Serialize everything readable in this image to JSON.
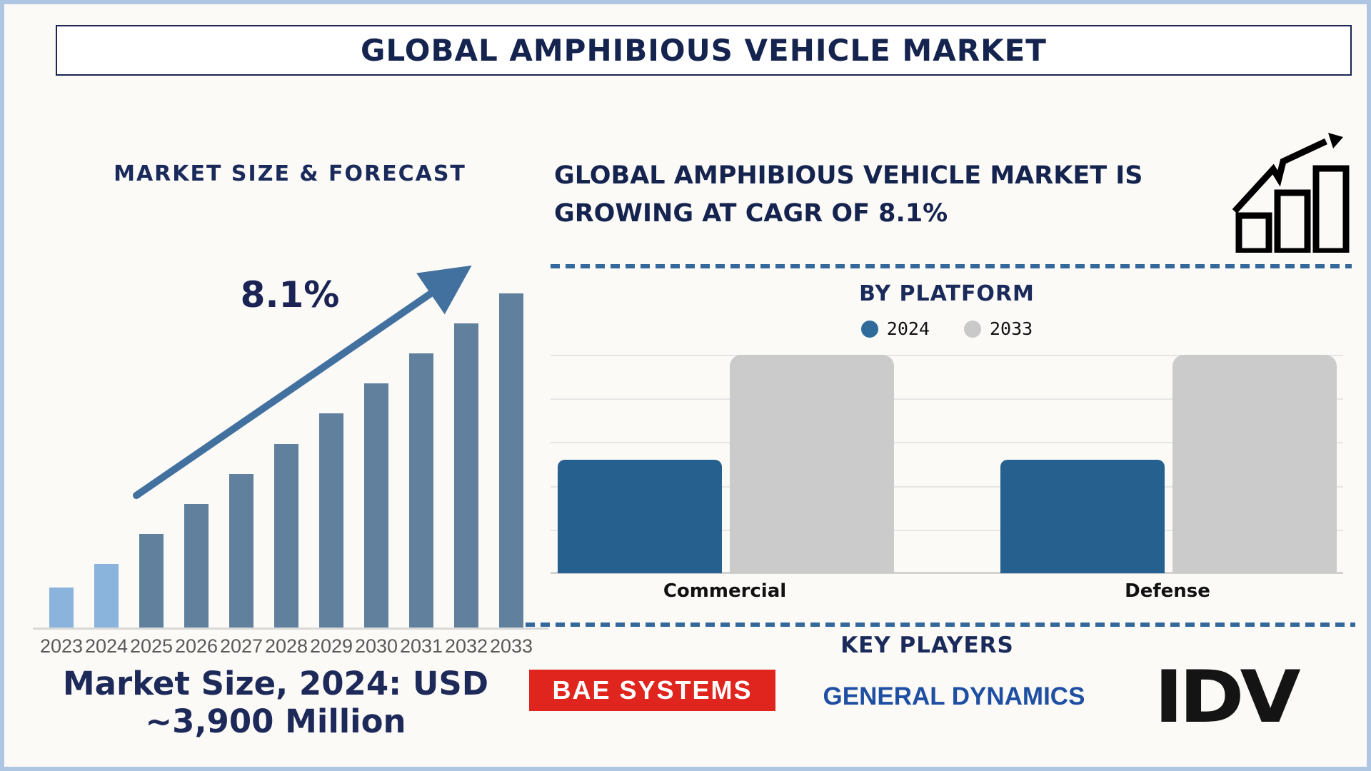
{
  "page": {
    "title": "GLOBAL AMPHIBIOUS VEHICLE MARKET"
  },
  "left_panel": {
    "heading": "MARKET SIZE & FORECAST",
    "cagr_annotation": "8.1%",
    "market_size_note_line1": "Market Size, 2024: USD",
    "market_size_note_line2": "~3,900 Million"
  },
  "right_panel": {
    "headline": "GLOBAL AMPHIBIOUS VEHICLE MARKET IS GROWING AT CAGR OF 8.1%",
    "growth_icon": "growth-chart-icon",
    "by_platform_heading": "BY PLATFORM",
    "key_players_heading": "KEY PLAYERS",
    "key_players": [
      "BAE SYSTEMS",
      "GENERAL DYNAMICS",
      "IDV"
    ]
  },
  "chart_data": [
    {
      "type": "bar",
      "title": "MARKET SIZE & FORECAST",
      "categories": [
        "2023",
        "2024",
        "2025",
        "2026",
        "2027",
        "2028",
        "2029",
        "2030",
        "2031",
        "2032",
        "2033"
      ],
      "values_rel_pct": [
        12,
        19,
        28,
        37,
        46,
        55,
        64,
        73,
        82,
        91,
        100
      ],
      "highlight_categories": [
        "2023",
        "2024"
      ],
      "annotation": "8.1%",
      "note": "Market Size, 2024: USD ~3,900 Million",
      "cagr": "8.1%",
      "market_size_2024_usd_million": 3900,
      "grid": false,
      "value_axis_labels": false
    },
    {
      "type": "bar",
      "title": "BY PLATFORM",
      "categories": [
        "Commercial",
        "Defense"
      ],
      "series": [
        {
          "name": "2024",
          "values_rel_pct": [
            52,
            52
          ],
          "color": "#26608f"
        },
        {
          "name": "2033",
          "values_rel_pct": [
            100,
            100
          ],
          "color": "#cbcbcb"
        }
      ],
      "legend_position": "top",
      "grid": true,
      "value_axis_labels": false
    }
  ],
  "colors": {
    "navy_text": "#15234f",
    "steel_blue_bar": "#60809e",
    "light_blue_bar": "#8ab4dc",
    "arrow_blue": "#43719f",
    "platform_blue": "#26608f",
    "platform_gray": "#cbcbcb",
    "dashed_line_blue": "#34689b",
    "gridline_gray": "#e6e6e6",
    "baseline_gray": "#d9d9d9",
    "year_label_gray": "#595959",
    "bae_red": "#e0241e",
    "general_dynamics_blue": "#1f4fa3",
    "idv_black": "#141414",
    "frame_light_blue": "#aec6e2"
  }
}
